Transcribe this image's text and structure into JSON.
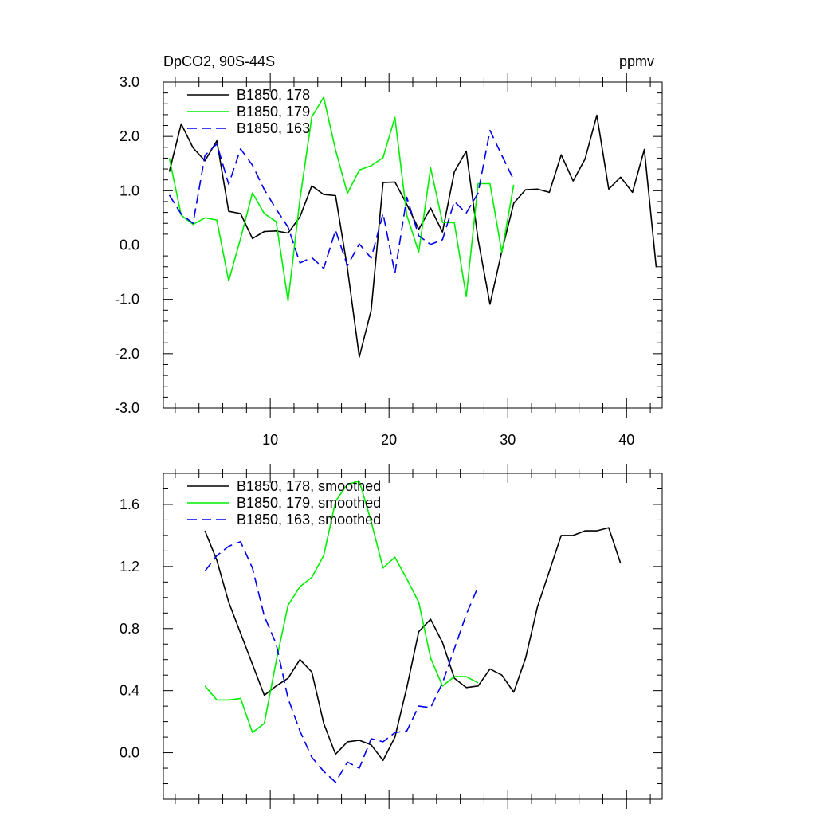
{
  "chart_data": [
    {
      "type": "line",
      "title": "DpCO2, 90S-44S",
      "units": "ppmv",
      "xlabel": "",
      "ylabel": "",
      "xlim": [
        1,
        43
      ],
      "ylim": [
        -3.0,
        3.0
      ],
      "yticks": [
        -3.0,
        -2.0,
        -1.0,
        0.0,
        1.0,
        2.0,
        3.0
      ],
      "ytick_labels": [
        "-3.0",
        "-2.0",
        "-1.0",
        "0.0",
        "1.0",
        "2.0",
        "3.0"
      ],
      "xticks": [
        10,
        20,
        30,
        40
      ],
      "xtick_labels": [
        "10",
        "20",
        "30",
        "40"
      ],
      "legend_position": "top-left",
      "series": [
        {
          "name": "B1850, 178",
          "color": "#000000",
          "dash": "solid",
          "x": [
            1.5,
            2.5,
            3.5,
            4.5,
            5.5,
            6.5,
            7.5,
            8.5,
            9.5,
            10.5,
            11.5,
            12.5,
            13.5,
            14.5,
            15.5,
            16.5,
            17.5,
            18.5,
            19.5,
            20.5,
            21.5,
            22.5,
            23.5,
            24.5,
            25.5,
            26.5,
            27.5,
            28.5,
            29.5,
            30.5,
            31.5,
            32.5,
            33.5,
            34.5,
            35.5,
            36.5,
            37.5,
            38.5,
            39.5,
            40.5,
            41.5,
            42.5
          ],
          "values": [
            1.35,
            2.23,
            1.79,
            1.55,
            1.92,
            0.62,
            0.58,
            0.12,
            0.25,
            0.26,
            0.22,
            0.52,
            1.09,
            0.93,
            0.91,
            -0.43,
            -2.06,
            -1.2,
            1.15,
            1.16,
            0.75,
            0.29,
            0.68,
            0.24,
            1.35,
            1.73,
            0.1,
            -1.09,
            -0.11,
            0.77,
            1.02,
            1.03,
            0.97,
            1.66,
            1.18,
            1.58,
            2.39,
            1.03,
            1.25,
            0.97,
            1.76,
            -0.41
          ]
        },
        {
          "name": "B1850, 179",
          "color": "#00ee00",
          "dash": "solid",
          "x": [
            1.5,
            2.5,
            3.5,
            4.5,
            5.5,
            6.5,
            7.5,
            8.5,
            9.5,
            10.5,
            11.5,
            12.5,
            13.5,
            14.5,
            15.5,
            16.5,
            17.5,
            18.5,
            19.5,
            20.5,
            21.5,
            22.5,
            23.5,
            24.5,
            25.5,
            26.5,
            27.5,
            28.5,
            29.5,
            30.5
          ],
          "values": [
            1.6,
            0.55,
            0.38,
            0.5,
            0.46,
            -0.66,
            0.12,
            0.96,
            0.58,
            0.43,
            -1.03,
            0.84,
            2.36,
            2.72,
            1.75,
            0.95,
            1.38,
            1.46,
            1.61,
            2.35,
            0.55,
            -0.13,
            1.42,
            0.42,
            0.41,
            -0.95,
            1.13,
            1.13,
            -0.14,
            1.11
          ]
        },
        {
          "name": "B1850, 163",
          "color": "#0000ee",
          "dash": "dashed",
          "x": [
            1.5,
            2.5,
            3.5,
            4.5,
            5.5,
            6.5,
            7.5,
            8.5,
            9.5,
            10.5,
            11.5,
            12.5,
            13.5,
            14.5,
            15.5,
            16.5,
            17.5,
            18.5,
            19.5,
            20.5,
            21.5,
            22.5,
            23.5,
            24.5,
            25.5,
            26.5,
            27.5,
            28.5,
            29.5,
            30.5
          ],
          "values": [
            0.92,
            0.57,
            0.4,
            1.65,
            1.86,
            1.12,
            1.77,
            1.47,
            1.02,
            0.66,
            0.33,
            -0.33,
            -0.23,
            -0.43,
            0.27,
            -0.38,
            0.02,
            -0.24,
            0.58,
            -0.52,
            0.88,
            0.17,
            0.01,
            0.1,
            0.8,
            0.59,
            0.96,
            2.11,
            1.65,
            1.2
          ]
        }
      ]
    },
    {
      "type": "line",
      "title": "",
      "xlabel": "",
      "ylabel": "",
      "xlim": [
        1,
        43
      ],
      "ylim": [
        -0.3,
        1.8
      ],
      "yticks": [
        0.0,
        0.4,
        0.8,
        1.2,
        1.6
      ],
      "ytick_labels": [
        "0.0",
        "0.4",
        "0.8",
        "1.2",
        "1.6"
      ],
      "xticks": [
        10,
        20,
        30,
        40
      ],
      "xtick_labels": [
        "",
        "",
        "",
        ""
      ],
      "legend_position": "top-left",
      "series": [
        {
          "name": "B1850, 178, smoothed",
          "color": "#000000",
          "dash": "solid",
          "x": [
            4.5,
            5.5,
            6.5,
            7.5,
            8.5,
            9.5,
            10.5,
            11.5,
            12.5,
            13.5,
            14.5,
            15.5,
            16.5,
            17.5,
            18.5,
            19.5,
            20.5,
            21.5,
            22.5,
            23.5,
            24.5,
            25.5,
            26.5,
            27.5,
            28.5,
            29.5,
            30.5,
            31.5,
            32.5,
            33.5,
            34.5,
            35.5,
            36.5,
            37.5,
            38.5,
            39.5
          ],
          "values": [
            1.43,
            1.24,
            0.97,
            0.77,
            0.57,
            0.37,
            0.43,
            0.48,
            0.6,
            0.52,
            0.19,
            -0.01,
            0.07,
            0.08,
            0.05,
            -0.05,
            0.1,
            0.42,
            0.78,
            0.86,
            0.71,
            0.48,
            0.42,
            0.43,
            0.54,
            0.5,
            0.39,
            0.61,
            0.94,
            1.17,
            1.4,
            1.4,
            1.43,
            1.43,
            1.45,
            1.22
          ]
        },
        {
          "name": "B1850, 179, smoothed",
          "color": "#00ee00",
          "dash": "solid",
          "x": [
            4.5,
            5.5,
            6.5,
            7.5,
            8.5,
            9.5,
            10.5,
            11.5,
            12.5,
            13.5,
            14.5,
            15.5,
            16.5,
            17.5,
            18.5,
            19.5,
            20.5,
            21.5,
            22.5,
            23.5,
            24.5,
            25.5,
            26.5,
            27.5
          ],
          "values": [
            0.43,
            0.34,
            0.34,
            0.35,
            0.13,
            0.19,
            0.59,
            0.95,
            1.07,
            1.13,
            1.27,
            1.62,
            1.73,
            1.75,
            1.49,
            1.19,
            1.26,
            1.12,
            0.97,
            0.61,
            0.43,
            0.49,
            0.49,
            0.45
          ]
        },
        {
          "name": "B1850, 163, smoothed",
          "color": "#0000ee",
          "dash": "dashed",
          "x": [
            4.5,
            5.5,
            6.5,
            7.5,
            8.5,
            9.5,
            10.5,
            11.5,
            12.5,
            13.5,
            14.5,
            15.5,
            16.5,
            17.5,
            18.5,
            19.5,
            20.5,
            21.5,
            22.5,
            23.5,
            24.5,
            25.5,
            26.5,
            27.5
          ],
          "values": [
            1.17,
            1.27,
            1.33,
            1.36,
            1.19,
            0.88,
            0.7,
            0.35,
            0.14,
            -0.03,
            -0.12,
            -0.19,
            -0.06,
            -0.1,
            0.09,
            0.07,
            0.13,
            0.14,
            0.3,
            0.29,
            0.45,
            0.67,
            0.89,
            1.07
          ]
        }
      ]
    }
  ]
}
